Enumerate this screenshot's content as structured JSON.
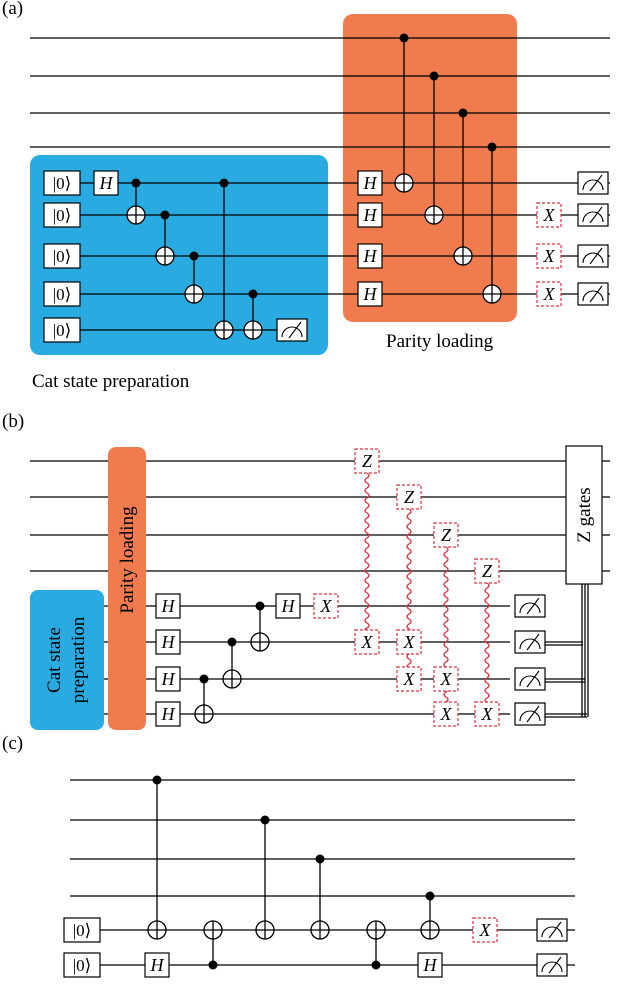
{
  "panels": {
    "a": {
      "label": "(a)",
      "cat_region_label": "Cat state preparation",
      "parity_region_label": "Parity loading",
      "ket": "|0⟩",
      "hadamard": "H",
      "x_gate": "X"
    },
    "b": {
      "label": "(b)",
      "cat_region_label_line1": "Cat state",
      "cat_region_label_line2": "preparation",
      "parity_region_label": "Parity loading",
      "z_gates_label": "Z gates",
      "hadamard": "H",
      "x_gate": "X",
      "z_gate": "Z"
    },
    "c": {
      "label": "(c)",
      "ket": "|0⟩",
      "hadamard": "H",
      "x_gate": "X"
    }
  },
  "colors": {
    "cat_region": "#29abe2",
    "parity_region": "#f07b4f",
    "error_gate_border": "#e0303a"
  }
}
